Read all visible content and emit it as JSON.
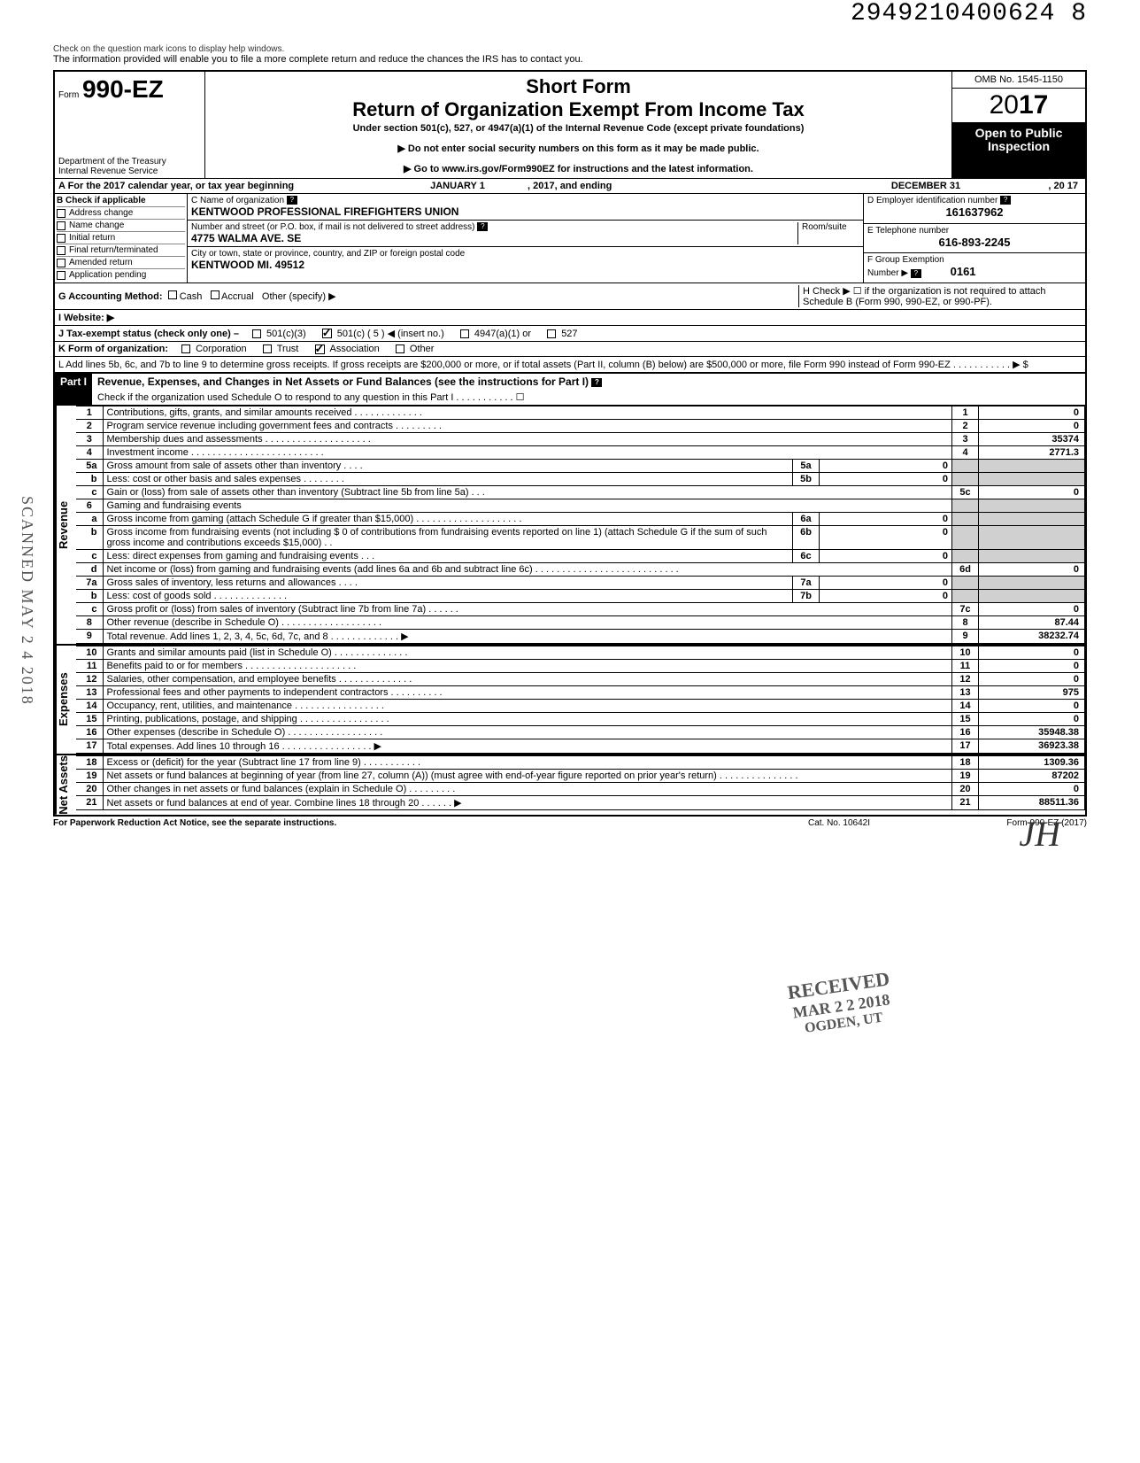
{
  "doc_id": "2949210400624 8",
  "intro_text": "The information provided will enable you to file a more complete return and reduce the chances the IRS has to contact you.",
  "header": {
    "form_prefix": "Form",
    "form_number": "990-EZ",
    "dept1": "Department of the Treasury",
    "dept2": "Internal Revenue Service",
    "short_form": "Short Form",
    "title": "Return of Organization Exempt From Income Tax",
    "under": "Under section 501(c), 527, or 4947(a)(1) of the Internal Revenue Code (except private foundations)",
    "note1": "▶ Do not enter social security numbers on this form as it may be made public.",
    "note2": "▶ Go to www.irs.gov/Form990EZ for instructions and the latest information.",
    "omb": "OMB No. 1545-1150",
    "year_prefix": "20",
    "year_suffix": "17",
    "open1": "Open to Public",
    "open2": "Inspection"
  },
  "calendar": {
    "label": "A  For the 2017 calendar year, or tax year beginning",
    "begin": "JANUARY 1",
    "mid": ", 2017, and ending",
    "end": "DECEMBER 31",
    "endyear": ", 20   17"
  },
  "colB": {
    "label": "B  Check if applicable",
    "items": [
      "Address change",
      "Name change",
      "Initial return",
      "Final return/terminated",
      "Amended return",
      "Application pending"
    ]
  },
  "colC": {
    "name_label": "C  Name of organization",
    "name": "KENTWOOD PROFESSIONAL FIREFIGHTERS UNION",
    "street_label": "Number and street (or P.O. box, if mail is not delivered to street address)",
    "street": "4775 WALMA AVE. SE",
    "room_label": "Room/suite",
    "city_label": "City or town, state or province, country, and ZIP or foreign postal code",
    "city": "KENTWOOD MI. 49512"
  },
  "colRight": {
    "ein_label": "D Employer identification number",
    "ein": "161637962",
    "tel_label": "E  Telephone number",
    "tel": "616-893-2245",
    "group_label": "F  Group Exemption",
    "group_label2": "Number  ▶",
    "group": "0161"
  },
  "rowG": "G  Accounting Method:",
  "rowG_opts": [
    "Cash",
    "Accrual",
    "Other (specify) ▶"
  ],
  "rowH": "H  Check ▶ ☐ if the organization is not required to attach Schedule B (Form 990, 990-EZ, or 990-PF).",
  "rowI": "I   Website: ▶",
  "rowJ": "J  Tax-exempt status (check only one) –",
  "rowJ_opts": [
    "501(c)(3)",
    "501(c) (   5   ) ◀ (insert no.)",
    "4947(a)(1) or",
    "527"
  ],
  "rowK": "K  Form of organization:",
  "rowK_opts": [
    "Corporation",
    "Trust",
    "Association",
    "Other"
  ],
  "rowL": "L  Add lines 5b, 6c, and 7b to line 9 to determine gross receipts. If gross receipts are $200,000 or more, or if total assets (Part II, column (B) below) are $500,000 or more, file Form 990 instead of Form 990-EZ  .  .  .  .  .  .  .  .  .  .  .  ▶   $",
  "part1": {
    "label": "Part I",
    "title": "Revenue, Expenses, and Changes in Net Assets or Fund Balances (see the instructions for Part I)",
    "subtitle": "Check if the organization used Schedule O to respond to any question in this Part I  .  .  .  .  .  .  .  .  .  .  .  ☐"
  },
  "sections": {
    "revenue": "Revenue",
    "expenses": "Expenses",
    "netassets": "Net Assets"
  },
  "lines": [
    {
      "n": "1",
      "desc": "Contributions, gifts, grants, and similar amounts received .  .  .  .  .  .  .  .  .  .  .  .  .",
      "rn": "1",
      "amt": "0"
    },
    {
      "n": "2",
      "desc": "Program service revenue including government fees and contracts  .  .  .  .  .  .  .  .  .",
      "rn": "2",
      "amt": "0"
    },
    {
      "n": "3",
      "desc": "Membership dues and assessments .  .  .  .  .  .  .  .  .  .  .  .  .  .  .  .  .  .  .  .",
      "rn": "3",
      "amt": "35374"
    },
    {
      "n": "4",
      "desc": "Investment income  .  .  .  .  .  .  .  .  .  .  .  .  .  .  .  .  .  .  .  .  .  .  .  .  .",
      "rn": "4",
      "amt": "2771.3"
    },
    {
      "n": "5a",
      "desc": "Gross amount from sale of assets other than inventory  .  .  .  .",
      "box": "5a",
      "mid": "0"
    },
    {
      "n": "b",
      "desc": "Less: cost or other basis and sales expenses .  .  .  .  .  .  .  .",
      "box": "5b",
      "mid": "0"
    },
    {
      "n": "c",
      "desc": "Gain or (loss) from sale of assets other than inventory (Subtract line 5b from line 5a)  .  .  .",
      "rn": "5c",
      "amt": "0"
    },
    {
      "n": "6",
      "desc": "Gaming and fundraising events"
    },
    {
      "n": "a",
      "desc": "Gross income from gaming (attach Schedule G if greater than $15,000) .  .  .  .  .  .  .  .  .  .  .  .  .  .  .  .  .  .  .  .",
      "box": "6a",
      "mid": "0"
    },
    {
      "n": "b",
      "desc": "Gross income from fundraising events (not including  $                   0 of contributions from fundraising events reported on line 1) (attach Schedule G if the sum of such gross income and contributions exceeds $15,000) .  .",
      "box": "6b",
      "mid": "0"
    },
    {
      "n": "c",
      "desc": "Less: direct expenses from gaming and fundraising events  .  .  .",
      "box": "6c",
      "mid": "0"
    },
    {
      "n": "d",
      "desc": "Net income or (loss) from gaming and fundraising events (add lines 6a and 6b and subtract line 6c)  .  .  .  .  .  .  .  .  .  .  .  .  .  .  .  .  .  .  .  .  .  .  .  .  .  .  .",
      "rn": "6d",
      "amt": "0"
    },
    {
      "n": "7a",
      "desc": "Gross sales of inventory, less returns and allowances  .  .  .  .",
      "box": "7a",
      "mid": "0"
    },
    {
      "n": "b",
      "desc": "Less: cost of goods sold  .  .  .  .  .  .  .  .  .  .  .  .  .  .",
      "box": "7b",
      "mid": "0"
    },
    {
      "n": "c",
      "desc": "Gross profit or (loss) from sales of inventory (Subtract line 7b from line 7a)  .  .  .  .  .  .",
      "rn": "7c",
      "amt": "0"
    },
    {
      "n": "8",
      "desc": "Other revenue (describe in Schedule O) .  .  .  .  .  .  .  .  .  .  .  .  .  .  .  .  .  .  .",
      "rn": "8",
      "amt": "87.44"
    },
    {
      "n": "9",
      "desc": "Total revenue. Add lines 1, 2, 3, 4, 5c, 6d, 7c, and 8  .  .  .  .  .  .  .  .  .  .  .  .  .  ▶",
      "rn": "9",
      "amt": "38232.74"
    },
    {
      "n": "10",
      "desc": "Grants and similar amounts paid (list in Schedule O)  .  .  .  .  .  .  .  .  .  .  .  .  .  .",
      "rn": "10",
      "amt": "0"
    },
    {
      "n": "11",
      "desc": "Benefits paid to or for members  .  .  .  .  .  .  .  .  .  .  .  .  .  .  .  .  .  .  .  .  .",
      "rn": "11",
      "amt": "0"
    },
    {
      "n": "12",
      "desc": "Salaries, other compensation, and employee benefits  .  .  .  .  .  .  .  .  .  .  .  .  .  .",
      "rn": "12",
      "amt": "0"
    },
    {
      "n": "13",
      "desc": "Professional fees and other payments to independent contractors  .  .  .  .  .  .  .  .  .  .",
      "rn": "13",
      "amt": "975"
    },
    {
      "n": "14",
      "desc": "Occupancy, rent, utilities, and maintenance  .  .  .  .  .  .  .  .  .  .  .  .  .  .  .  .  .",
      "rn": "14",
      "amt": "0"
    },
    {
      "n": "15",
      "desc": "Printing, publications, postage, and shipping .  .  .  .  .  .  .  .  .  .  .  .  .  .  .  .  .",
      "rn": "15",
      "amt": "0"
    },
    {
      "n": "16",
      "desc": "Other expenses (describe in Schedule O)  .  .  .  .  .  .  .  .  .  .  .  .  .  .  .  .  .  .",
      "rn": "16",
      "amt": "35948.38"
    },
    {
      "n": "17",
      "desc": "Total expenses. Add lines 10 through 16  .  .  .  .  .  .  .  .  .  .  .  .  .  .  .  .  .  ▶",
      "rn": "17",
      "amt": "36923.38"
    },
    {
      "n": "18",
      "desc": "Excess or (deficit) for the year (Subtract line 17 from line 9)  .  .  .  .  .  .  .  .  .  .  .",
      "rn": "18",
      "amt": "1309.36"
    },
    {
      "n": "19",
      "desc": "Net assets or fund balances at beginning of year (from line 27, column (A)) (must agree with end-of-year figure reported on prior year's return)  .  .  .  .  .  .  .  .  .  .  .  .  .  .  .",
      "rn": "19",
      "amt": "87202"
    },
    {
      "n": "20",
      "desc": "Other changes in net assets or fund balances (explain in Schedule O) .  .  .  .  .  .  .  .  .",
      "rn": "20",
      "amt": "0"
    },
    {
      "n": "21",
      "desc": "Net assets or fund balances at end of year. Combine lines 18 through 20  .  .  .  .  .  .  ▶",
      "rn": "21",
      "amt": "88511.36"
    }
  ],
  "footer": {
    "left": "For Paperwork Reduction Act Notice, see the separate instructions.",
    "center": "Cat. No. 10642I",
    "right": "Form 990-EZ (2017)"
  },
  "stamps": {
    "scanned": "SCANNED MAY 2 4 2018",
    "received1": "RECEIVED",
    "received2": "MAR 2 2 2018",
    "received3": "OGDEN, UT"
  },
  "signature": "JH"
}
